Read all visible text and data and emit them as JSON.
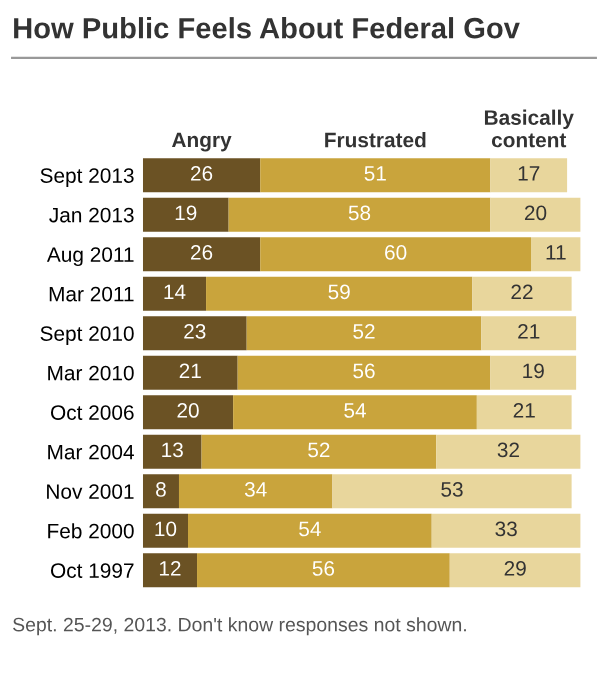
{
  "chart_data": {
    "type": "bar",
    "orientation": "horizontal",
    "stacked": true,
    "data_labels": true,
    "title": "How Public Feels About Federal Gov",
    "categories": [
      "Sept 2013",
      "Jan 2013",
      "Aug 2011",
      "Mar 2011",
      "Sept 2010",
      "Mar 2010",
      "Oct 2006",
      "Mar 2004",
      "Nov 2001",
      "Feb 2000",
      "Oct 1997"
    ],
    "series": [
      {
        "name": "Angry",
        "color": "#6b5224",
        "values": [
          26,
          19,
          26,
          14,
          23,
          21,
          20,
          13,
          8,
          10,
          12
        ]
      },
      {
        "name": "Frustrated",
        "color": "#c9a43c",
        "values": [
          51,
          58,
          60,
          59,
          52,
          56,
          54,
          52,
          34,
          54,
          56
        ]
      },
      {
        "name": "Basically content",
        "color": "#e8d69c",
        "values": [
          17,
          20,
          11,
          22,
          21,
          19,
          21,
          32,
          53,
          33,
          29
        ]
      }
    ],
    "annotations": [
      "Sept. 25-29, 2013. Don't know responses not shown."
    ],
    "legend": false,
    "grid": false
  }
}
